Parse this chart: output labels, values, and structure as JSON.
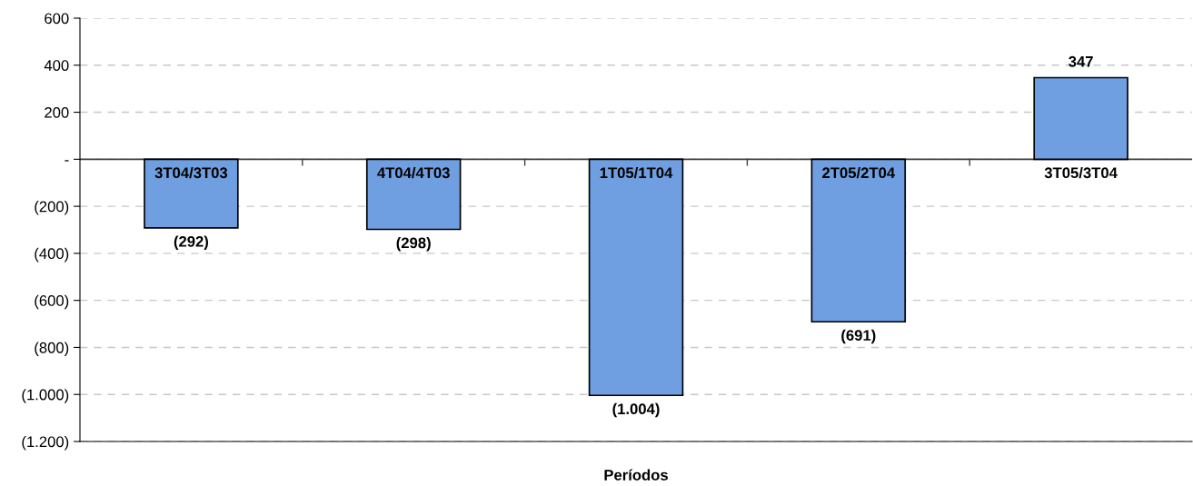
{
  "chart_data": {
    "type": "bar",
    "xlabel": "Períodos",
    "categories": [
      "3T04/3T03",
      "4T04/4T03",
      "1T05/1T04",
      "2T05/2T04",
      "3T05/3T04"
    ],
    "values": [
      -292,
      -298,
      -1004,
      -691,
      347
    ],
    "value_labels": [
      "(292)",
      "(298)",
      "(1.004)",
      "(691)",
      "347"
    ],
    "color": "#6f9fe0",
    "ylim": [
      -1200,
      600
    ],
    "yticks": [
      600,
      400,
      200,
      {
        "value": 0,
        "label": "-"
      },
      {
        "value": -200,
        "label": "(200)"
      },
      {
        "value": -400,
        "label": "(400)"
      },
      {
        "value": -600,
        "label": "(600)"
      },
      {
        "value": -800,
        "label": "(800)"
      },
      {
        "value": -1000,
        "label": "(1.000)"
      },
      {
        "value": -1200,
        "label": "(1.200)"
      }
    ],
    "grid": "y"
  }
}
